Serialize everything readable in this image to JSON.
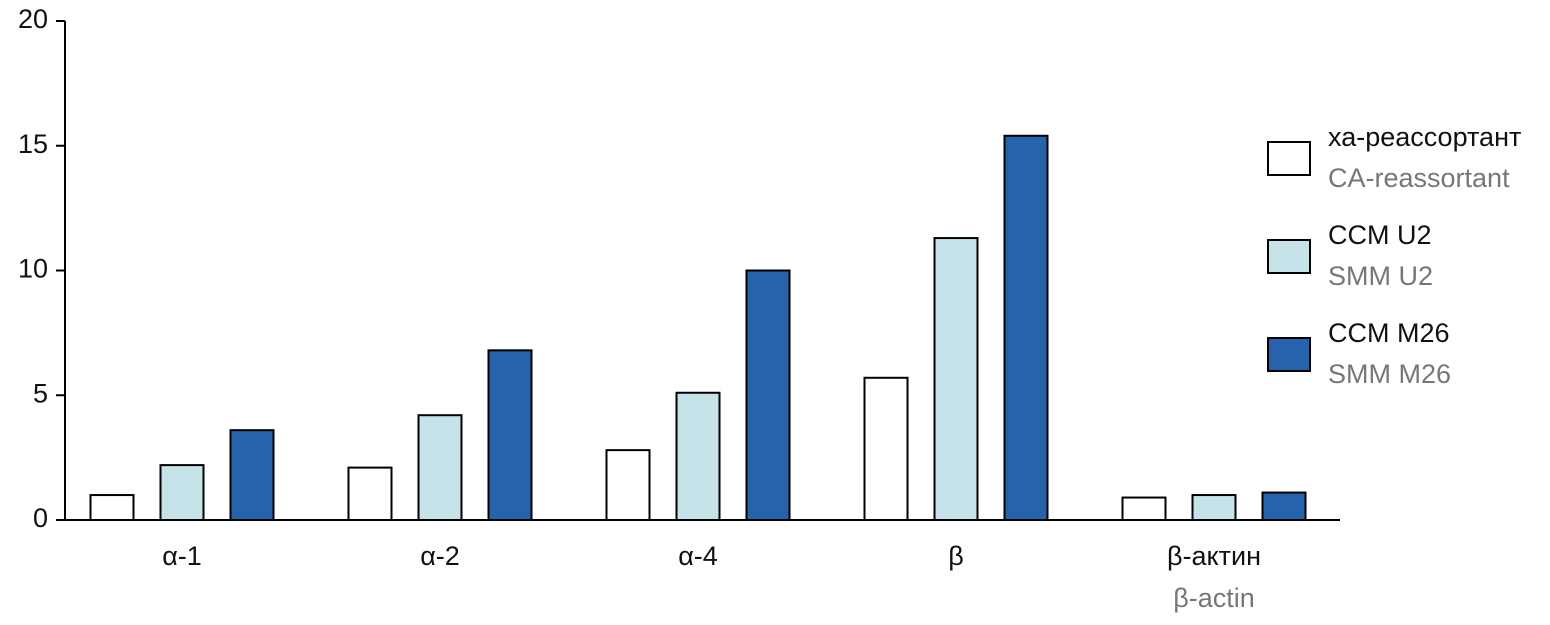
{
  "chart_data": {
    "type": "bar",
    "categories": [
      "α-1",
      "α-2",
      "α-4",
      "β",
      "β-актин"
    ],
    "category_sublabels": [
      null,
      null,
      null,
      null,
      "β-actin"
    ],
    "series": [
      {
        "name": "ха-реассортант",
        "subname": "CA-reassortant",
        "color": "#ffffff",
        "values": [
          1.0,
          2.1,
          2.8,
          5.7,
          0.9
        ]
      },
      {
        "name": "CCM U2",
        "subname": "SMM U2",
        "color": "#c5e3e8",
        "values": [
          2.2,
          4.2,
          5.1,
          11.3,
          1.0
        ]
      },
      {
        "name": "CCM M26",
        "subname": "SMM M26",
        "color": "#2563ad",
        "values": [
          3.6,
          6.8,
          10.0,
          15.4,
          1.1
        ]
      }
    ],
    "ylim": [
      0,
      20
    ],
    "yticks": [
      0,
      5,
      10,
      15,
      20
    ],
    "grid": false,
    "legend": "right"
  }
}
